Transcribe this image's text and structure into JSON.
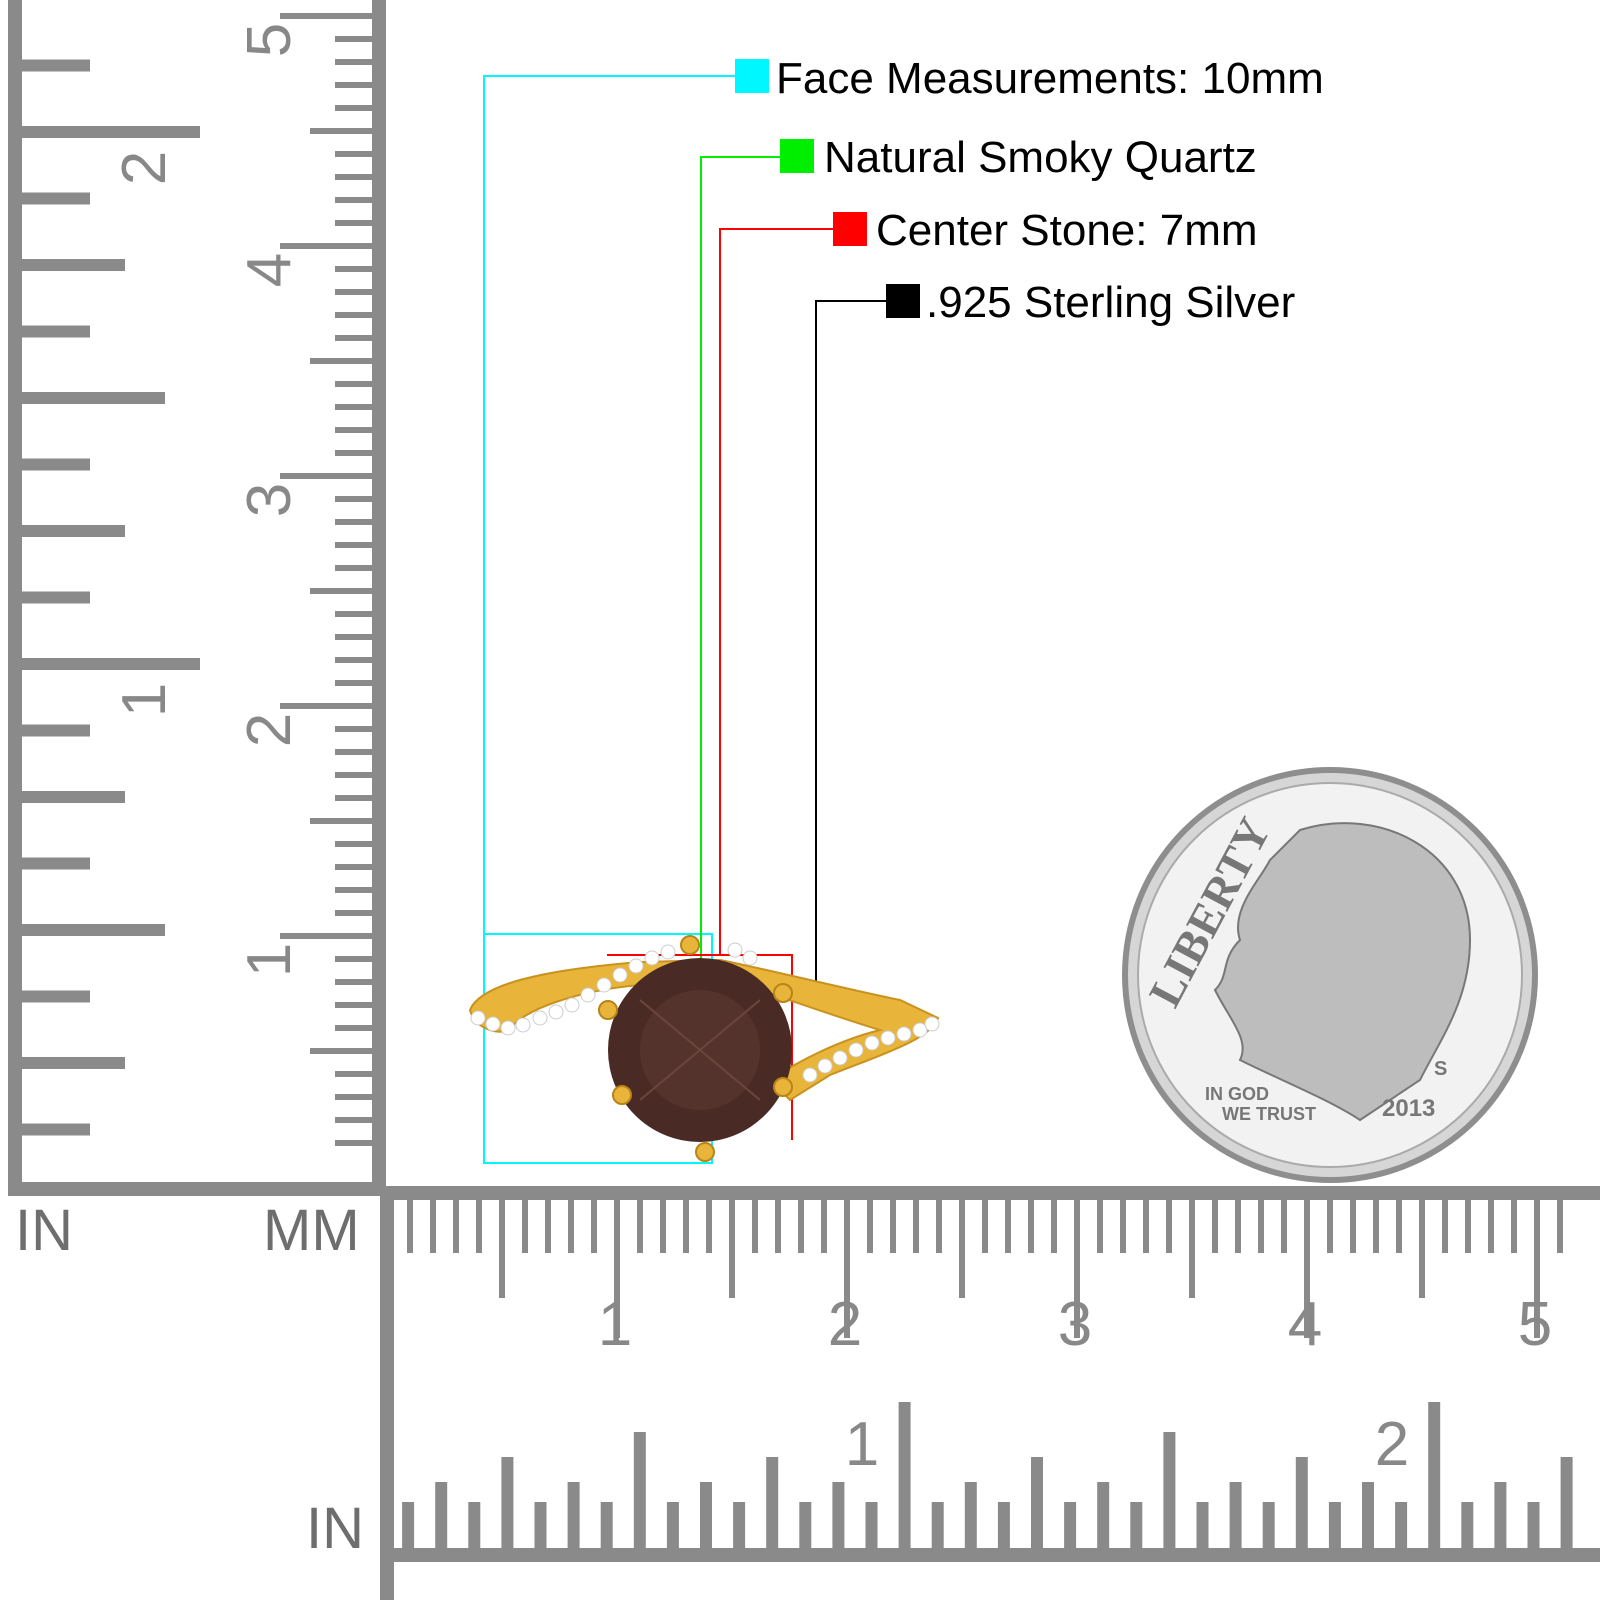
{
  "legend": [
    {
      "label": "Face Measurements: 10mm",
      "color": "#00f7ff"
    },
    {
      "label": "Natural Smoky Quartz",
      "color": "#00ee00"
    },
    {
      "label": "Center Stone: 7mm",
      "color": "#ff0000"
    },
    {
      "label": ".925 Sterling Silver",
      "color": "#000000"
    }
  ],
  "rulers": {
    "left_inch_unit": "IN",
    "left_mm_unit": "MM",
    "bottom_inch_unit": "IN",
    "left_inch_labels": [
      "1",
      "2"
    ],
    "left_mm_labels": [
      "1",
      "2",
      "3",
      "4",
      "5"
    ],
    "bottom_mm_labels": [
      "1",
      "2",
      "3",
      "4",
      "5"
    ],
    "bottom_inch_labels": [
      "1",
      "2"
    ],
    "color": "#8a8a8a"
  },
  "product": {
    "metal_color": "#e8b53a",
    "stone_color": "#4a2a24"
  },
  "coin": {
    "lettering": [
      "LIBERTY",
      "IN GOD",
      "WE TRUST",
      "2013",
      "S"
    ]
  }
}
